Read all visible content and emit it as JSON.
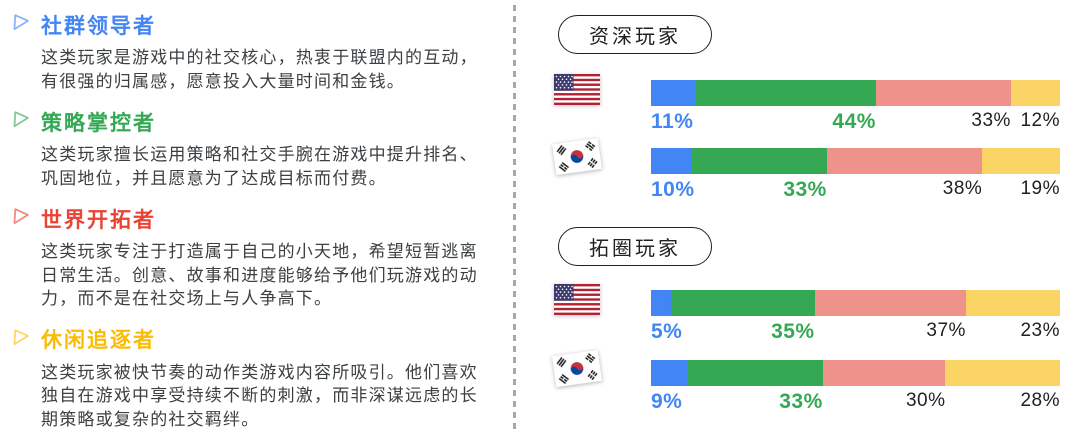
{
  "colors": {
    "segment_blue": "#4285F4",
    "segment_green": "#34A853",
    "segment_pink": "#F0928C",
    "segment_yellow": "#FAD565",
    "heading_blue": "#4285F4",
    "heading_green": "#34A853",
    "heading_red": "#EA4335",
    "heading_yellow": "#FBBC04",
    "body_text": "#3C4043",
    "divider_gray": "#A5A8AB"
  },
  "player_types": [
    {
      "icon": "triangle-play-icon",
      "icon_color": "#8AB4F8",
      "title": "社群领导者",
      "description": "这类玩家是游戏中的社交核心，热衷于联盟内的互动，有很强的归属感，愿意投入大量时间和金钱。"
    },
    {
      "icon": "triangle-play-icon",
      "icon_color": "#81C995",
      "title": "策略掌控者",
      "description": "这类玩家擅长运用策略和社交手腕在游戏中提升排名、巩固地位，并且愿意为了达成目标而付费。"
    },
    {
      "icon": "triangle-play-icon",
      "icon_color": "#F28B82",
      "title": "世界开拓者",
      "description": "这类玩家专注于打造属于自己的小天地，希望短暂逃离日常生活。创意、故事和进度能够给予他们玩游戏的动力，而不是在社交场上与人争高下。"
    },
    {
      "icon": "triangle-play-icon",
      "icon_color": "#FDD663",
      "title": "休闲追逐者",
      "description": "这类玩家被快节奏的动作类游戏内容所吸引。他们喜欢独自在游戏中享受持续不断的刺激，而非深谋远虑的长期策略或复杂的社交羁绊。"
    }
  ],
  "chart_data": [
    {
      "type": "bar",
      "stacked": true,
      "title": "资深玩家",
      "unit": "%",
      "segment_names": [
        "社群领导者",
        "策略掌控者",
        "世界开拓者",
        "休闲追逐者"
      ],
      "segment_colors": [
        "#4285F4",
        "#34A853",
        "#F0928C",
        "#FAD565"
      ],
      "label_colors": [
        "#4285F4",
        "#34A853",
        "#202124",
        "#202124"
      ],
      "xlim": [
        0,
        100
      ],
      "rows": [
        {
          "flag": "us-flag-icon",
          "values": [
            11,
            44,
            33,
            12
          ]
        },
        {
          "flag": "kr-flag-icon",
          "values": [
            10,
            33,
            38,
            19
          ]
        }
      ]
    },
    {
      "type": "bar",
      "stacked": true,
      "title": "拓圈玩家",
      "unit": "%",
      "segment_names": [
        "社群领导者",
        "策略掌控者",
        "世界开拓者",
        "休闲追逐者"
      ],
      "segment_colors": [
        "#4285F4",
        "#34A853",
        "#F0928C",
        "#FAD565"
      ],
      "label_colors": [
        "#4285F4",
        "#34A853",
        "#202124",
        "#202124"
      ],
      "xlim": [
        0,
        100
      ],
      "rows": [
        {
          "flag": "us-flag-icon",
          "values": [
            5,
            35,
            37,
            23
          ]
        },
        {
          "flag": "kr-flag-icon",
          "values": [
            9,
            33,
            30,
            28
          ]
        }
      ]
    }
  ]
}
